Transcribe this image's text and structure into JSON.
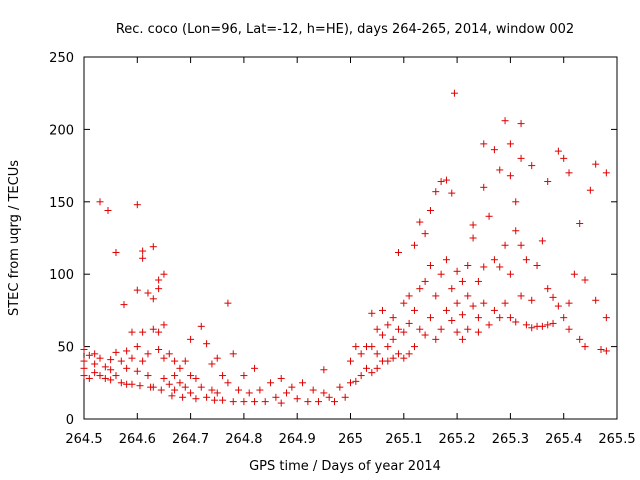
{
  "chart_data": {
    "type": "scatter",
    "title": "Rec. coco (Lon=96, Lat=-12, h=HE), days 264-265, 2014, window 002",
    "xlabel": "GPS time / Days of year 2014",
    "ylabel": "STEC from uqrg / TECUs",
    "xlim": [
      264.5,
      265.5
    ],
    "ylim": [
      0,
      250
    ],
    "xticks": [
      "264.5",
      "264.6",
      "264.7",
      "264.8",
      "264.9",
      "265",
      "265.1",
      "265.2",
      "265.3",
      "265.4",
      "265.5"
    ],
    "yticks": [
      "0",
      "50",
      "100",
      "150",
      "200",
      "250"
    ],
    "marker": "+",
    "color": "#dd0000",
    "grid": false,
    "series": [
      {
        "name": "",
        "values": [
          [
            264.5,
            48
          ],
          [
            264.5,
            40
          ],
          [
            264.5,
            35
          ],
          [
            264.5,
            30
          ],
          [
            264.51,
            44
          ],
          [
            264.51,
            28
          ],
          [
            264.52,
            45
          ],
          [
            264.52,
            38
          ],
          [
            264.52,
            32
          ],
          [
            264.53,
            150
          ],
          [
            264.53,
            30
          ],
          [
            264.53,
            42
          ],
          [
            264.54,
            36
          ],
          [
            264.54,
            28
          ],
          [
            264.545,
            144
          ],
          [
            264.55,
            41
          ],
          [
            264.55,
            34
          ],
          [
            264.55,
            27
          ],
          [
            264.56,
            115
          ],
          [
            264.56,
            46
          ],
          [
            264.56,
            30
          ],
          [
            264.57,
            40
          ],
          [
            264.57,
            25
          ],
          [
            264.575,
            79
          ],
          [
            264.58,
            47
          ],
          [
            264.58,
            35
          ],
          [
            264.58,
            24
          ],
          [
            264.59,
            60
          ],
          [
            264.59,
            42
          ],
          [
            264.59,
            24
          ],
          [
            264.6,
            148
          ],
          [
            264.6,
            89
          ],
          [
            264.6,
            50
          ],
          [
            264.6,
            33
          ],
          [
            264.605,
            23
          ],
          [
            264.61,
            116
          ],
          [
            264.61,
            111
          ],
          [
            264.61,
            60
          ],
          [
            264.61,
            40
          ],
          [
            264.62,
            87
          ],
          [
            264.62,
            45
          ],
          [
            264.62,
            30
          ],
          [
            264.625,
            22
          ],
          [
            264.63,
            119
          ],
          [
            264.63,
            83
          ],
          [
            264.63,
            62
          ],
          [
            264.63,
            22
          ],
          [
            264.64,
            96
          ],
          [
            264.64,
            90
          ],
          [
            264.64,
            60
          ],
          [
            264.64,
            48
          ],
          [
            264.645,
            20
          ],
          [
            264.65,
            100
          ],
          [
            264.65,
            65
          ],
          [
            264.65,
            42
          ],
          [
            264.65,
            28
          ],
          [
            264.66,
            45
          ],
          [
            264.66,
            24
          ],
          [
            264.665,
            16
          ],
          [
            264.67,
            40
          ],
          [
            264.67,
            30
          ],
          [
            264.67,
            20
          ],
          [
            264.68,
            35
          ],
          [
            264.68,
            25
          ],
          [
            264.685,
            15
          ],
          [
            264.69,
            40
          ],
          [
            264.69,
            22
          ],
          [
            264.7,
            55
          ],
          [
            264.7,
            30
          ],
          [
            264.7,
            18
          ],
          [
            264.71,
            28
          ],
          [
            264.71,
            14
          ],
          [
            264.72,
            64
          ],
          [
            264.72,
            22
          ],
          [
            264.73,
            52
          ],
          [
            264.73,
            15
          ],
          [
            264.74,
            38
          ],
          [
            264.74,
            20
          ],
          [
            264.745,
            13
          ],
          [
            264.75,
            42
          ],
          [
            264.75,
            18
          ],
          [
            264.76,
            30
          ],
          [
            264.76,
            13
          ],
          [
            264.77,
            80
          ],
          [
            264.77,
            25
          ],
          [
            264.78,
            45
          ],
          [
            264.78,
            12
          ],
          [
            264.79,
            20
          ],
          [
            264.8,
            30
          ],
          [
            264.8,
            12
          ],
          [
            264.81,
            18
          ],
          [
            264.82,
            35
          ],
          [
            264.82,
            12
          ],
          [
            264.83,
            20
          ],
          [
            264.84,
            12
          ],
          [
            264.85,
            25
          ],
          [
            264.86,
            15
          ],
          [
            264.87,
            28
          ],
          [
            264.87,
            11
          ],
          [
            264.88,
            18
          ],
          [
            264.89,
            22
          ],
          [
            264.9,
            14
          ],
          [
            264.91,
            25
          ],
          [
            264.92,
            12
          ],
          [
            264.93,
            20
          ],
          [
            264.94,
            12
          ],
          [
            264.95,
            34
          ],
          [
            264.95,
            18
          ],
          [
            264.96,
            15
          ],
          [
            264.97,
            12
          ],
          [
            264.98,
            22
          ],
          [
            264.99,
            15
          ],
          [
            265.0,
            25
          ],
          [
            265.0,
            40
          ],
          [
            265.01,
            50
          ],
          [
            265.01,
            26
          ],
          [
            265.02,
            45
          ],
          [
            265.02,
            30
          ],
          [
            265.03,
            50
          ],
          [
            265.03,
            35
          ],
          [
            265.04,
            73
          ],
          [
            265.04,
            50
          ],
          [
            265.04,
            32
          ],
          [
            265.05,
            62
          ],
          [
            265.05,
            45
          ],
          [
            265.05,
            35
          ],
          [
            265.06,
            75
          ],
          [
            265.06,
            58
          ],
          [
            265.06,
            40
          ],
          [
            265.07,
            65
          ],
          [
            265.07,
            50
          ],
          [
            265.07,
            40
          ],
          [
            265.08,
            70
          ],
          [
            265.08,
            55
          ],
          [
            265.08,
            42
          ],
          [
            265.09,
            115
          ],
          [
            265.09,
            62
          ],
          [
            265.09,
            45
          ],
          [
            265.1,
            80
          ],
          [
            265.1,
            60
          ],
          [
            265.1,
            42
          ],
          [
            265.11,
            85
          ],
          [
            265.11,
            66
          ],
          [
            265.11,
            45
          ],
          [
            265.12,
            120
          ],
          [
            265.12,
            75
          ],
          [
            265.12,
            50
          ],
          [
            265.13,
            136
          ],
          [
            265.13,
            90
          ],
          [
            265.13,
            62
          ],
          [
            265.14,
            128
          ],
          [
            265.14,
            95
          ],
          [
            265.14,
            58
          ],
          [
            265.15,
            144
          ],
          [
            265.15,
            106
          ],
          [
            265.15,
            70
          ],
          [
            265.16,
            157
          ],
          [
            265.16,
            85
          ],
          [
            265.16,
            55
          ],
          [
            265.17,
            164
          ],
          [
            265.17,
            100
          ],
          [
            265.17,
            62
          ],
          [
            265.18,
            165
          ],
          [
            265.18,
            110
          ],
          [
            265.18,
            75
          ],
          [
            265.19,
            156
          ],
          [
            265.19,
            90
          ],
          [
            265.19,
            68
          ],
          [
            265.195,
            225
          ],
          [
            265.2,
            102
          ],
          [
            265.2,
            80
          ],
          [
            265.2,
            60
          ],
          [
            265.21,
            95
          ],
          [
            265.21,
            72
          ],
          [
            265.21,
            55
          ],
          [
            265.22,
            106
          ],
          [
            265.22,
            85
          ],
          [
            265.22,
            62
          ],
          [
            265.23,
            134
          ],
          [
            265.23,
            125
          ],
          [
            265.23,
            78
          ],
          [
            265.24,
            95
          ],
          [
            265.24,
            70
          ],
          [
            265.24,
            60
          ],
          [
            265.25,
            190
          ],
          [
            265.25,
            160
          ],
          [
            265.25,
            105
          ],
          [
            265.25,
            80
          ],
          [
            265.26,
            140
          ],
          [
            265.26,
            65
          ],
          [
            265.27,
            186
          ],
          [
            265.27,
            110
          ],
          [
            265.27,
            75
          ],
          [
            265.28,
            172
          ],
          [
            265.28,
            105
          ],
          [
            265.28,
            70
          ],
          [
            265.29,
            206
          ],
          [
            265.29,
            120
          ],
          [
            265.29,
            80
          ],
          [
            265.3,
            190
          ],
          [
            265.3,
            168
          ],
          [
            265.3,
            100
          ],
          [
            265.3,
            70
          ],
          [
            265.31,
            150
          ],
          [
            265.31,
            130
          ],
          [
            265.31,
            67
          ],
          [
            265.32,
            204
          ],
          [
            265.32,
            180
          ],
          [
            265.32,
            120
          ],
          [
            265.32,
            85
          ],
          [
            265.33,
            110
          ],
          [
            265.33,
            65
          ],
          [
            265.34,
            175
          ],
          [
            265.34,
            82
          ],
          [
            265.34,
            63
          ],
          [
            265.35,
            106
          ],
          [
            265.35,
            64
          ],
          [
            265.36,
            123
          ],
          [
            265.36,
            64
          ],
          [
            265.37,
            164
          ],
          [
            265.37,
            90
          ],
          [
            265.37,
            65
          ],
          [
            265.38,
            84
          ],
          [
            265.38,
            66
          ],
          [
            265.39,
            185
          ],
          [
            265.39,
            78
          ],
          [
            265.4,
            180
          ],
          [
            265.4,
            70
          ],
          [
            265.41,
            170
          ],
          [
            265.41,
            80
          ],
          [
            265.41,
            62
          ],
          [
            265.42,
            100
          ],
          [
            265.43,
            135
          ],
          [
            265.43,
            55
          ],
          [
            265.44,
            96
          ],
          [
            265.44,
            50
          ],
          [
            265.45,
            158
          ],
          [
            265.46,
            176
          ],
          [
            265.46,
            82
          ],
          [
            265.47,
            48
          ],
          [
            265.48,
            170
          ],
          [
            265.48,
            70
          ],
          [
            265.48,
            47
          ]
        ]
      }
    ]
  }
}
